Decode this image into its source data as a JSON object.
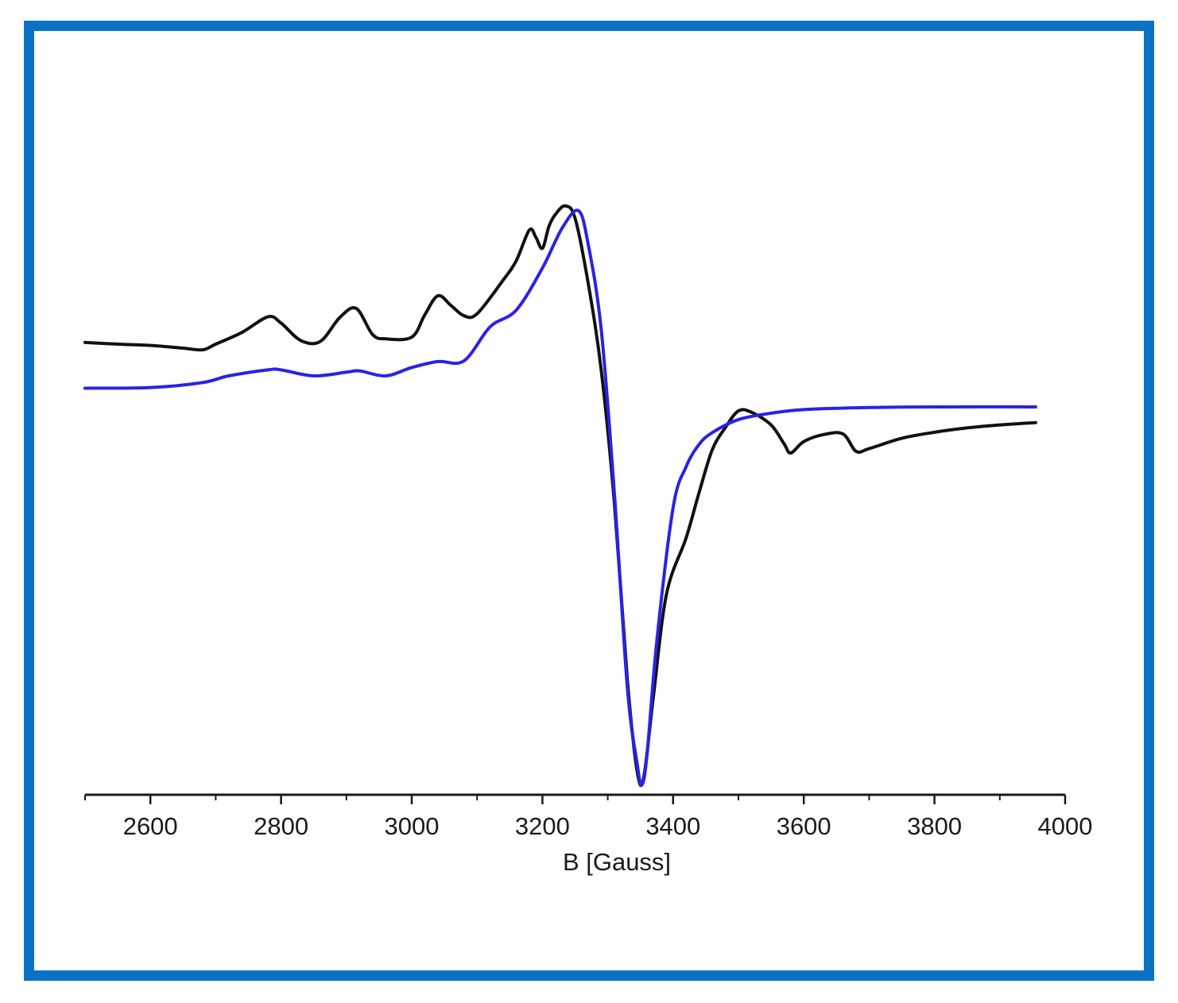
{
  "colors": {
    "frame": "#0a72c4",
    "experimental": "#111111",
    "simulated": "#2a22e6",
    "axis": "#1a1a1a"
  },
  "chart_data": {
    "type": "line",
    "title": "",
    "xlabel": "B [Gauss]",
    "ylabel": "",
    "xlim": [
      2500,
      4000
    ],
    "ylim": [
      -1.0,
      1.0
    ],
    "xticks": [
      2600,
      2800,
      3000,
      3200,
      3400,
      3600,
      3800,
      4000
    ],
    "xtick_labels": [
      "2600",
      "2800",
      "3000",
      "3200",
      "3400",
      "3600",
      "3800",
      "4000"
    ],
    "grid": false,
    "legend": "none",
    "series": [
      {
        "color": "#111111",
        "x": [
          2500,
          2550,
          2600,
          2650,
          2680,
          2700,
          2740,
          2780,
          2800,
          2830,
          2860,
          2890,
          2915,
          2940,
          2960,
          3000,
          3020,
          3040,
          3060,
          3080,
          3100,
          3140,
          3160,
          3180,
          3190,
          3200,
          3210,
          3220,
          3235,
          3250,
          3270,
          3290,
          3310,
          3330,
          3345,
          3355,
          3370,
          3390,
          3420,
          3440,
          3460,
          3480,
          3500,
          3520,
          3550,
          3570,
          3580,
          3600,
          3630,
          3660,
          3680,
          3700,
          3750,
          3800,
          3850,
          3900,
          3955
        ],
        "y": [
          0.355,
          0.35,
          0.346,
          0.338,
          0.333,
          0.35,
          0.385,
          0.432,
          0.413,
          0.361,
          0.358,
          0.43,
          0.457,
          0.379,
          0.366,
          0.371,
          0.438,
          0.495,
          0.466,
          0.435,
          0.441,
          0.542,
          0.6,
          0.692,
          0.67,
          0.637,
          0.703,
          0.739,
          0.764,
          0.727,
          0.533,
          0.272,
          -0.123,
          -0.655,
          -0.93,
          -0.948,
          -0.703,
          -0.398,
          -0.23,
          -0.093,
          0.034,
          0.1,
          0.15,
          0.146,
          0.108,
          0.051,
          0.024,
          0.058,
          0.079,
          0.081,
          0.029,
          0.037,
          0.068,
          0.086,
          0.099,
          0.108,
          0.115
        ]
      },
      {
        "color": "#2a22e6",
        "x": [
          2500,
          2600,
          2680,
          2720,
          2780,
          2800,
          2850,
          2900,
          2920,
          2960,
          3000,
          3040,
          3080,
          3120,
          3160,
          3200,
          3230,
          3255,
          3270,
          3290,
          3310,
          3330,
          3345,
          3352,
          3360,
          3375,
          3400,
          3420,
          3440,
          3460,
          3500,
          3550,
          3600,
          3700,
          3800,
          3955
        ],
        "y": [
          0.218,
          0.22,
          0.235,
          0.255,
          0.273,
          0.273,
          0.255,
          0.266,
          0.27,
          0.255,
          0.28,
          0.298,
          0.3,
          0.402,
          0.452,
          0.578,
          0.697,
          0.75,
          0.65,
          0.394,
          -0.093,
          -0.679,
          -0.907,
          -0.971,
          -0.882,
          -0.541,
          -0.14,
          -0.017,
          0.05,
          0.085,
          0.124,
          0.143,
          0.154,
          0.16,
          0.162,
          0.162
        ]
      }
    ]
  }
}
